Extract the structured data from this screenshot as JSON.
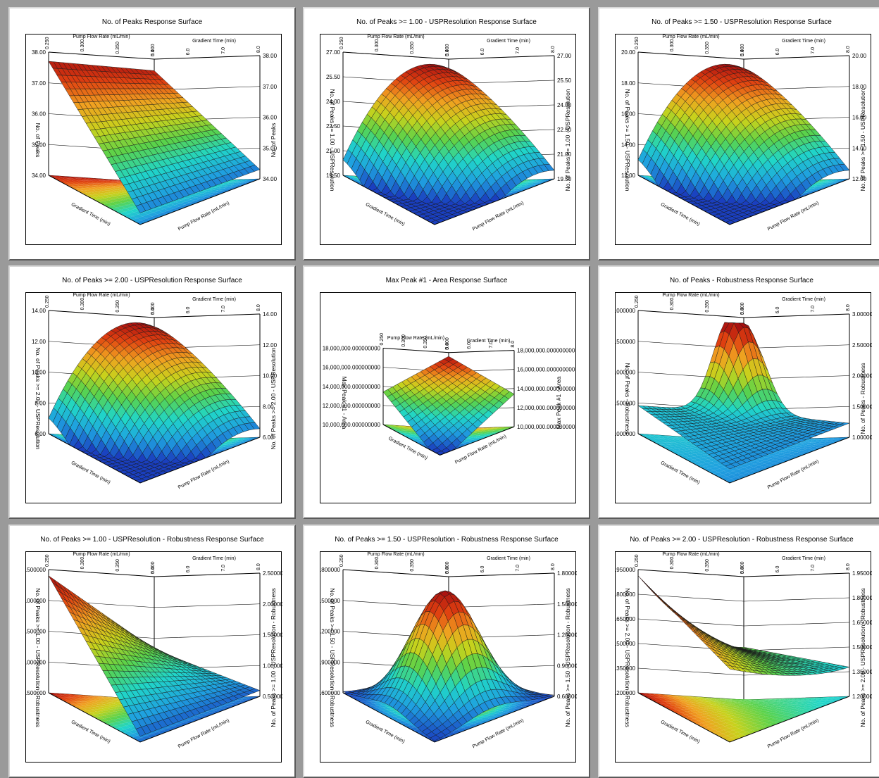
{
  "colors": {
    "background": "#9a9a9a",
    "panel": "#ffffff",
    "colormap": [
      "#1a3fbf",
      "#1f9fe0",
      "#20d6c8",
      "#5ad24a",
      "#c8d21c",
      "#f0a020",
      "#e04010",
      "#a81010"
    ]
  },
  "axes_common": {
    "flow_label": "Pump Flow Rate (mL/min)",
    "flow_ticks": [
      "0.250",
      "0.300",
      "0.350",
      "0.400"
    ],
    "gradient_label": "Gradient Time (min)",
    "gradient_ticks": [
      "5.0",
      "6.0",
      "7.0",
      "8.0"
    ]
  },
  "chart_data": [
    {
      "type": "surface",
      "title": "No. of Peaks Response Surface",
      "zlabel": "No. of Peaks",
      "z_ticks": [
        "34.00",
        "35.00",
        "36.00",
        "37.00",
        "38.00"
      ],
      "zlim": [
        34,
        38
      ],
      "shape": "ramp"
    },
    {
      "type": "surface",
      "title": "No. of Peaks >= 1.00 - USPResolution Response Surface",
      "zlabel": "No. of Peaks >= 1.00 - USPResolution",
      "z_ticks": [
        "19.50",
        "21.00",
        "22.50",
        "24.00",
        "25.50",
        "27.00"
      ],
      "zlim": [
        19.5,
        27
      ],
      "shape": "dome-back"
    },
    {
      "type": "surface",
      "title": "No. of Peaks >= 1.50 - USPResolution Response Surface",
      "zlabel": "No. of Peaks >= 1.50 - USPResolution",
      "z_ticks": [
        "12.00",
        "14.00",
        "16.00",
        "18.00",
        "20.00"
      ],
      "zlim": [
        12,
        20
      ],
      "shape": "dome-back"
    },
    {
      "type": "surface",
      "title": "No. of Peaks >= 2.00 - USPResolution Response Surface",
      "zlabel": "No. of Peaks >= 2.00 - USPResolution",
      "z_ticks": [
        "6.00",
        "8.00",
        "10.00",
        "12.00",
        "14.00"
      ],
      "zlim": [
        6,
        14
      ],
      "shape": "dome-back"
    },
    {
      "type": "surface",
      "title": "Max Peak #1 - Area Response Surface",
      "zlabel": "Max Peak #1 - Area",
      "z_ticks": [
        "10,000,000.000000000",
        "12,000,000.000000000",
        "14,000,000.000000000",
        "16,000,000.000000000",
        "18,000,000.000000000"
      ],
      "zlim": [
        10000000,
        18000000
      ],
      "shape": "steep-ramp",
      "small": true
    },
    {
      "type": "surface",
      "title": "No. of Peaks - Robustness Response Surface",
      "zlabel": "No. of Peaks - Robustness",
      "z_ticks": [
        "1.000000",
        "1.500000",
        "2.000000",
        "2.500000",
        "3.000000"
      ],
      "zlim": [
        1,
        3
      ],
      "shape": "spike"
    },
    {
      "type": "surface",
      "title": "No. of Peaks >= 1.00 - USPResolution - Robustness Response Surface",
      "zlabel": "No. of Peaks >= 1.00 - USPResolution - Robustness",
      "z_ticks": [
        "0.500000",
        "1.000000",
        "1.500000",
        "2.000000",
        "2.500000"
      ],
      "zlim": [
        0.5,
        2.5
      ],
      "shape": "rise-back"
    },
    {
      "type": "surface",
      "title": "No. of Peaks >= 1.50 - USPResolution - Robustness Response Surface",
      "zlabel": "No. of Peaks >= 1.50 - USPResolution - Robustness",
      "z_ticks": [
        "0.600000",
        "0.900000",
        "1.200000",
        "1.500000",
        "1.800000"
      ],
      "zlim": [
        0.6,
        1.8
      ],
      "shape": "peak-center"
    },
    {
      "type": "surface",
      "title": "No. of Peaks >= 2.00 - USPResolution - Robustness Response Surface",
      "zlabel": "No. of Peaks >= 2.00 - USPResolution - Robustness",
      "z_ticks": [
        "1.200000",
        "1.350000",
        "1.500000",
        "1.650000",
        "1.800000",
        "1.950000"
      ],
      "zlim": [
        1.2,
        1.95
      ],
      "shape": "rise-right"
    }
  ]
}
